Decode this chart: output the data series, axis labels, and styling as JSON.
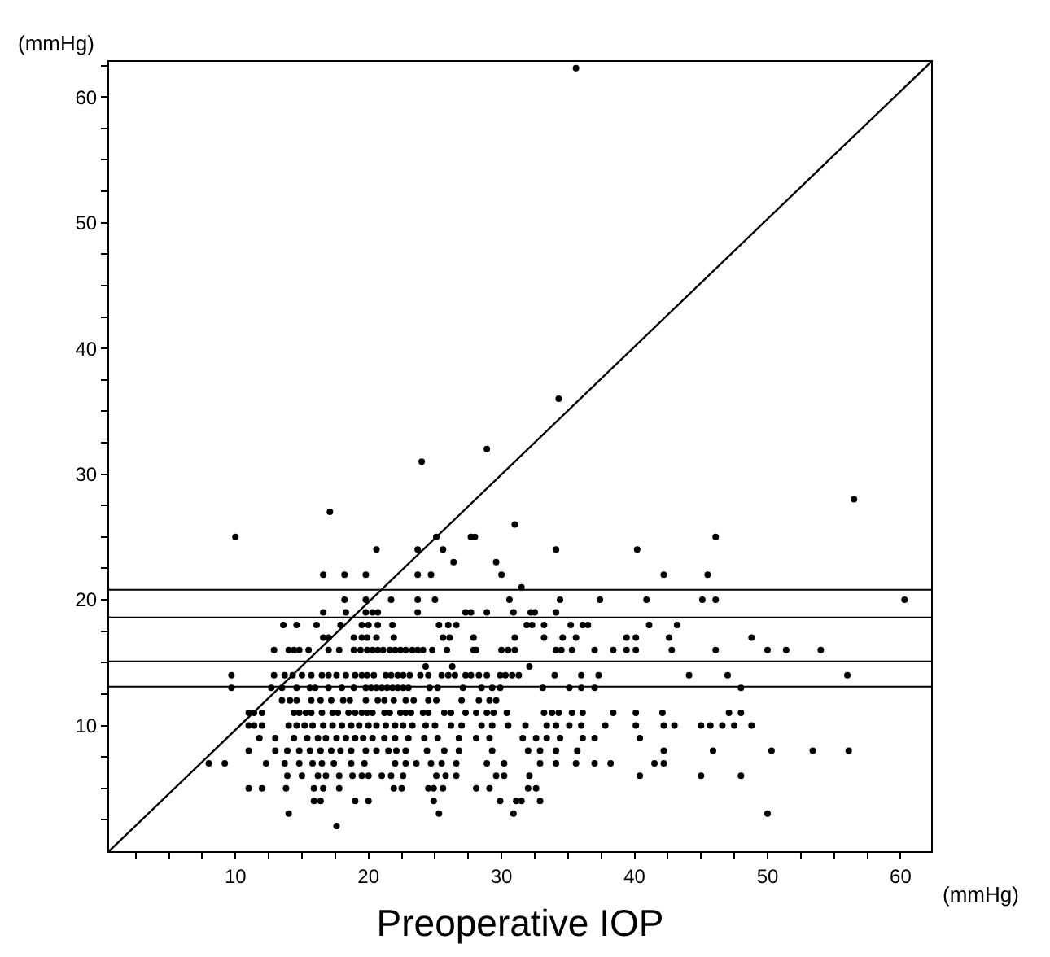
{
  "chart_data": {
    "type": "scatter",
    "xlabel": "Preoperative IOP",
    "ylabel": "(mmHg)",
    "annotations": [
      "(mmHg)"
    ],
    "xlim": [
      0.5,
      62.3
    ],
    "ylim": [
      0,
      62.8
    ],
    "xticks": [
      {
        "value": 2.5,
        "label": null
      },
      {
        "value": 5,
        "label": null
      },
      {
        "value": 7.5,
        "label": null
      },
      10,
      {
        "value": 12.5,
        "label": null
      },
      {
        "value": 15,
        "label": null
      },
      {
        "value": 17.5,
        "label": null
      },
      20,
      {
        "value": 22.5,
        "label": null
      },
      {
        "value": 25,
        "label": null
      },
      {
        "value": 27.5,
        "label": null
      },
      30,
      {
        "value": 32.5,
        "label": null
      },
      {
        "value": 35,
        "label": null
      },
      {
        "value": 37.5,
        "label": null
      },
      40,
      {
        "value": 42.5,
        "label": null
      },
      {
        "value": 45,
        "label": null
      },
      {
        "value": 47.5,
        "label": null
      },
      50,
      {
        "value": 52.5,
        "label": null
      },
      {
        "value": 55,
        "label": null
      },
      {
        "value": 57.5,
        "label": null
      },
      60
    ],
    "yticks": [
      {
        "value": 2.5,
        "label": null
      },
      {
        "value": 5,
        "label": null
      },
      {
        "value": 7.5,
        "label": null
      },
      10,
      {
        "value": 12.5,
        "label": null
      },
      {
        "value": 15,
        "label": null
      },
      {
        "value": 17.5,
        "label": null
      },
      20,
      {
        "value": 22.5,
        "label": null
      },
      {
        "value": 25,
        "label": null
      },
      {
        "value": 27.5,
        "label": null
      },
      30,
      {
        "value": 32.5,
        "label": null
      },
      {
        "value": 35,
        "label": null
      },
      {
        "value": 37.5,
        "label": null
      },
      40,
      {
        "value": 42.5,
        "label": null
      },
      {
        "value": 45,
        "label": null
      },
      {
        "value": 47.5,
        "label": null
      },
      50,
      {
        "value": 52.5,
        "label": null
      },
      {
        "value": 55,
        "label": null
      },
      {
        "value": 57.5,
        "label": null
      },
      60,
      {
        "value": 62.5,
        "label": null
      }
    ],
    "grid": false,
    "marker": "circle",
    "ref_lines": [
      {
        "axis": "y",
        "value": 20.8,
        "color": "#000000"
      },
      {
        "axis": "y",
        "value": 18.6,
        "color": "#000000"
      },
      {
        "axis": "y",
        "value": 15.1,
        "color": "#000000"
      },
      {
        "axis": "y",
        "value": 13.1,
        "color": "#000000"
      }
    ],
    "series": [
      {
        "color": "#000000",
        "x": [
          34.3,
          35.6,
          28.9,
          24.0,
          56.5,
          17.1,
          31.0,
          10.0,
          25.1,
          27.7,
          28.0,
          46.1,
          20.6,
          23.7,
          25.6,
          34.1,
          40.2,
          26.4,
          29.6,
          16.6,
          18.2,
          19.8,
          23.7,
          24.7,
          30.0,
          42.2,
          45.5,
          31.5,
          18.2,
          19.8,
          21.7,
          23.7,
          25.0,
          30.6,
          34.4,
          37.4,
          40.9,
          45.1,
          46.1,
          60.3,
          16.6,
          18.3,
          19.8,
          20.3,
          20.7,
          23.7,
          27.3,
          27.7,
          28.9,
          30.9,
          32.2,
          32.5,
          34.1,
          13.6,
          14.6,
          16.1,
          17.9,
          19.5,
          20.0,
          20.7,
          21.8,
          25.3,
          26.0,
          26.6,
          31.9,
          32.3,
          33.2,
          35.2,
          36.1,
          36.5,
          41.1,
          43.2,
          16.6,
          17.0,
          18.9,
          19.5,
          19.9,
          20.6,
          21.9,
          25.6,
          26.1,
          27.9,
          31.0,
          33.2,
          34.6,
          35.6,
          39.4,
          40.1,
          42.6,
          48.8,
          12.9,
          14.0,
          14.4,
          14.8,
          15.5,
          17.0,
          17.8,
          18.9,
          19.4,
          19.9,
          20.3,
          20.7,
          21.1,
          21.6,
          22.0,
          22.4,
          22.8,
          23.3,
          23.7,
          24.1,
          24.8,
          25.9,
          27.9,
          28.1,
          30.0,
          30.5,
          31.0,
          34.1,
          34.5,
          35.3,
          37.0,
          38.4,
          39.4,
          40.1,
          42.8,
          46.1,
          50.0,
          51.4,
          54.0,
          24.3,
          26.3,
          32.1,
          9.7,
          12.9,
          13.7,
          14.3,
          15.0,
          15.7,
          16.5,
          17.0,
          17.6,
          18.3,
          19.0,
          19.5,
          19.9,
          20.4,
          21.3,
          21.7,
          22.2,
          22.6,
          23.1,
          23.9,
          24.5,
          25.5,
          26.0,
          26.5,
          27.3,
          27.7,
          28.3,
          28.9,
          29.9,
          30.3,
          30.8,
          31.3,
          34.0,
          36.0,
          37.3,
          44.1,
          47.0,
          56.0,
          9.7,
          12.7,
          13.5,
          14.6,
          15.6,
          16.0,
          17.0,
          18.0,
          18.9,
          19.8,
          20.2,
          20.6,
          21.0,
          21.4,
          21.8,
          22.2,
          22.6,
          23.0,
          24.6,
          25.2,
          27.1,
          28.5,
          29.3,
          29.9,
          33.1,
          35.1,
          36.0,
          37.0,
          48.0,
          13.5,
          14.1,
          14.6,
          15.7,
          16.4,
          17.2,
          18.1,
          18.6,
          19.8,
          20.7,
          21.2,
          21.9,
          22.8,
          23.4,
          24.5,
          25.1,
          27.0,
          28.3,
          29.1,
          29.6,
          11.0,
          11.4,
          12.0,
          14.4,
          14.8,
          15.3,
          15.7,
          16.5,
          17.3,
          17.7,
          18.5,
          19.0,
          19.5,
          19.9,
          20.3,
          21.2,
          21.6,
          22.4,
          22.8,
          23.2,
          24.1,
          24.5,
          25.7,
          26.2,
          27.3,
          28.1,
          28.9,
          29.4,
          30.4,
          33.2,
          33.8,
          34.3,
          35.3,
          36.1,
          38.4,
          40.1,
          42.1,
          47.1,
          48.0,
          11.0,
          11.4,
          12.0,
          14.0,
          14.6,
          15.2,
          15.8,
          16.6,
          17.3,
          18.0,
          18.7,
          19.3,
          20.0,
          20.6,
          21.3,
          22.0,
          22.6,
          23.3,
          24.3,
          25.0,
          26.2,
          27.0,
          28.5,
          29.3,
          30.5,
          31.8,
          33.4,
          34.1,
          35.1,
          36.0,
          37.8,
          40.1,
          42.2,
          43.0,
          45.0,
          45.7,
          46.6,
          47.5,
          48.8,
          11.8,
          13.0,
          14.4,
          15.4,
          16.2,
          16.8,
          17.6,
          18.3,
          19.0,
          19.6,
          20.3,
          21.2,
          22.0,
          23.0,
          24.2,
          25.2,
          26.8,
          28.1,
          29.1,
          31.6,
          32.6,
          33.4,
          34.4,
          36.1,
          37.0,
          40.4,
          11.0,
          13.0,
          13.9,
          14.8,
          15.6,
          16.4,
          17.2,
          17.9,
          18.7,
          19.8,
          20.6,
          21.5,
          22.1,
          22.8,
          24.4,
          25.7,
          26.8,
          29.3,
          32.0,
          32.9,
          34.1,
          35.7,
          42.2,
          45.9,
          50.3,
          53.4,
          56.1,
          8.0,
          9.2,
          12.3,
          13.7,
          14.8,
          15.8,
          16.5,
          17.4,
          18.7,
          19.7,
          22.0,
          22.8,
          23.6,
          24.7,
          25.5,
          26.6,
          28.9,
          30.2,
          32.9,
          34.1,
          35.6,
          37.0,
          38.2,
          41.5,
          42.2,
          13.9,
          15.0,
          16.2,
          16.8,
          17.8,
          18.8,
          19.5,
          20.0,
          21.0,
          21.7,
          22.6,
          25.1,
          25.8,
          26.6,
          29.6,
          30.2,
          32.1,
          40.4,
          45.0,
          48.0,
          11.0,
          12.0,
          13.8,
          15.9,
          16.6,
          17.8,
          21.9,
          22.5,
          24.5,
          24.9,
          25.6,
          28.1,
          29.1,
          32.0,
          32.6,
          15.9,
          16.4,
          19.0,
          20.0,
          24.9,
          29.9,
          31.1,
          31.5,
          32.9,
          14.0,
          25.3,
          30.9,
          50.0,
          17.6
        ],
        "values": [
          36,
          62.3,
          32,
          31,
          28,
          27,
          26,
          25,
          25,
          25,
          25,
          25,
          24,
          24,
          24,
          24,
          24,
          23,
          23,
          22,
          22,
          22,
          22,
          22,
          22,
          22,
          22,
          21,
          20,
          20,
          20,
          20,
          20,
          20,
          20,
          20,
          20,
          20,
          20,
          20,
          19,
          19,
          19,
          19,
          19,
          19,
          19,
          19,
          19,
          19,
          19,
          19,
          19,
          18,
          18,
          18,
          18,
          18,
          18,
          18,
          18,
          18,
          18,
          18,
          18,
          18,
          18,
          18,
          18,
          18,
          18,
          18,
          17,
          17,
          17,
          17,
          17,
          17,
          17,
          17,
          17,
          17,
          17,
          17,
          17,
          17,
          17,
          17,
          17,
          17,
          16,
          16,
          16,
          16,
          16,
          16,
          16,
          16,
          16,
          16,
          16,
          16,
          16,
          16,
          16,
          16,
          16,
          16,
          16,
          16,
          16,
          16,
          16,
          16,
          16,
          16,
          16,
          16,
          16,
          16,
          16,
          16,
          16,
          16,
          16,
          16,
          16,
          16,
          16,
          14.7,
          14.7,
          14.7,
          14,
          14,
          14,
          14,
          14,
          14,
          14,
          14,
          14,
          14,
          14,
          14,
          14,
          14,
          14,
          14,
          14,
          14,
          14,
          14,
          14,
          14,
          14,
          14,
          14,
          14,
          14,
          14,
          14,
          14,
          14,
          14,
          14,
          14,
          14,
          14,
          14,
          14,
          13,
          13,
          13,
          13,
          13,
          13,
          13,
          13,
          13,
          13,
          13,
          13,
          13,
          13,
          13,
          13,
          13,
          13,
          13,
          13,
          13,
          13,
          13,
          13,
          13,
          13,
          13,
          13,
          13,
          12,
          12,
          12,
          12,
          12,
          12,
          12,
          12,
          12,
          12,
          12,
          12,
          12,
          12,
          12,
          12,
          12,
          12,
          12,
          12,
          11,
          11,
          11,
          11,
          11,
          11,
          11,
          11,
          11,
          11,
          11,
          11,
          11,
          11,
          11,
          11,
          11,
          11,
          11,
          11,
          11,
          11,
          11,
          11,
          11,
          11,
          11,
          11,
          11,
          11,
          11,
          11,
          11,
          11,
          11,
          11,
          11,
          11,
          11,
          10,
          10,
          10,
          10,
          10,
          10,
          10,
          10,
          10,
          10,
          10,
          10,
          10,
          10,
          10,
          10,
          10,
          10,
          10,
          10,
          10,
          10,
          10,
          10,
          10,
          10,
          10,
          10,
          10,
          10,
          10,
          10,
          10,
          10,
          10,
          10,
          10,
          10,
          10,
          9,
          9,
          9,
          9,
          9,
          9,
          9,
          9,
          9,
          9,
          9,
          9,
          9,
          9,
          9,
          9,
          9,
          9,
          9,
          9,
          9,
          9,
          9,
          9,
          9,
          9,
          8,
          8,
          8,
          8,
          8,
          8,
          8,
          8,
          8,
          8,
          8,
          8,
          8,
          8,
          8,
          8,
          8,
          8,
          8,
          8,
          8,
          8,
          8,
          8,
          8,
          8,
          8,
          7,
          7,
          7,
          7,
          7,
          7,
          7,
          7,
          7,
          7,
          7,
          7,
          7,
          7,
          7,
          7,
          7,
          7,
          7,
          7,
          7,
          7,
          7,
          7,
          7,
          6,
          6,
          6,
          6,
          6,
          6,
          6,
          6,
          6,
          6,
          6,
          6,
          6,
          6,
          6,
          6,
          6,
          6,
          6,
          6,
          5,
          5,
          5,
          5,
          5,
          5,
          5,
          5,
          5,
          5,
          5,
          5,
          5,
          5,
          5,
          4,
          4,
          4,
          4,
          4,
          4,
          4,
          4,
          4,
          3,
          3,
          3,
          3,
          2
        ]
      },
      {
        "type": "line",
        "color": "#000000",
        "line_style": "solid",
        "marker": "none",
        "x": [
          0.5,
          62.3
        ],
        "values": [
          0,
          62.8
        ]
      }
    ]
  }
}
